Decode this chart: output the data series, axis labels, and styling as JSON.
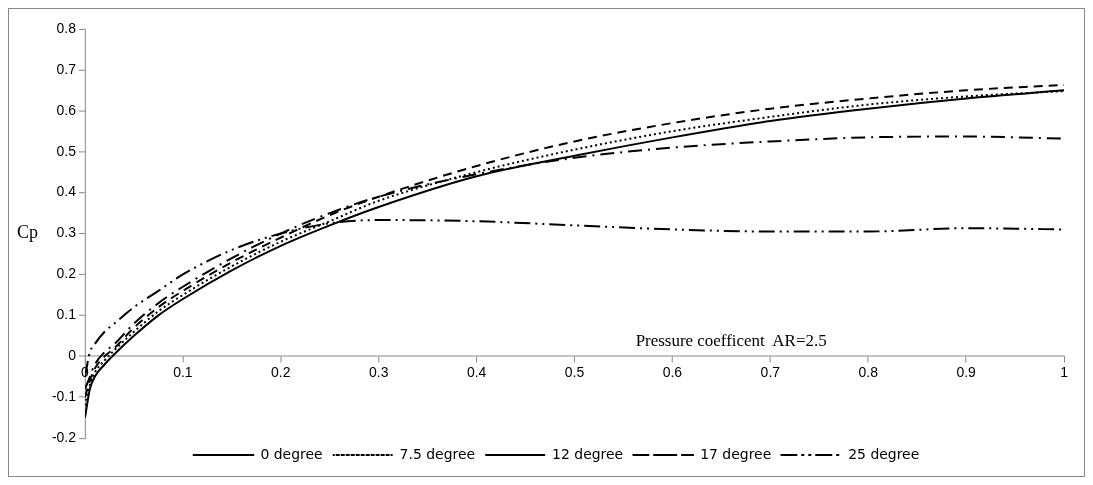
{
  "chart_data": {
    "type": "line",
    "ylabel": "Cp",
    "annotations": [
      "Pressure coefficent  AR=2.5"
    ],
    "xlim": [
      0,
      1
    ],
    "xticks": [
      0,
      0.1,
      0.2,
      0.3,
      0.4,
      0.5,
      0.6,
      0.7,
      0.8,
      0.9,
      1
    ],
    "ylim": [
      -0.2,
      0.8
    ],
    "yticks": [
      -0.2,
      -0.1,
      0,
      0.1,
      0.2,
      0.3,
      0.4,
      0.5,
      0.6,
      0.7,
      0.8
    ],
    "grid": false,
    "legend": "bottom",
    "marker": "none",
    "x": [
      0,
      0.005,
      0.01,
      0.02,
      0.03,
      0.05,
      0.075,
      0.1,
      0.15,
      0.2,
      0.25,
      0.3,
      0.4,
      0.5,
      0.6,
      0.7,
      0.8,
      0.9,
      1
    ],
    "series": [
      {
        "name": "0 degree",
        "color": "#000000",
        "line_style": "solid",
        "values": [
          -0.15,
          -0.08,
          -0.05,
          -0.02,
          0.005,
          0.05,
          0.1,
          0.14,
          0.21,
          0.27,
          0.32,
          0.365,
          0.44,
          0.49,
          0.535,
          0.575,
          0.605,
          0.63,
          0.65
        ]
      },
      {
        "name": "7.5 degree",
        "color": "#000000",
        "line_style": "dotted",
        "values": [
          -0.12,
          -0.07,
          -0.04,
          -0.01,
          0.015,
          0.06,
          0.11,
          0.15,
          0.22,
          0.28,
          0.33,
          0.38,
          0.45,
          0.505,
          0.55,
          0.585,
          0.615,
          0.635,
          0.648
        ]
      },
      {
        "name": "12 degree",
        "color": "#000000",
        "line_style": "dashed",
        "values": [
          -0.1,
          -0.06,
          -0.03,
          0,
          0.02,
          0.07,
          0.12,
          0.16,
          0.23,
          0.29,
          0.345,
          0.39,
          0.465,
          0.525,
          0.57,
          0.605,
          0.63,
          0.65,
          0.663
        ]
      },
      {
        "name": "17 degree",
        "color": "#000000",
        "line_style": "dashdot",
        "values": [
          -0.08,
          -0.05,
          -0.02,
          0.01,
          0.03,
          0.08,
          0.13,
          0.17,
          0.24,
          0.3,
          0.35,
          0.39,
          0.445,
          0.485,
          0.51,
          0.525,
          0.535,
          0.537,
          0.532
        ]
      },
      {
        "name": "25 degree",
        "color": "#000000",
        "line_style": "dashdotdot",
        "values": [
          -0.05,
          0.01,
          0.03,
          0.06,
          0.08,
          0.12,
          0.16,
          0.2,
          0.26,
          0.3,
          0.325,
          0.333,
          0.33,
          0.32,
          0.31,
          0.305,
          0.305,
          0.313,
          0.31
        ]
      }
    ]
  }
}
